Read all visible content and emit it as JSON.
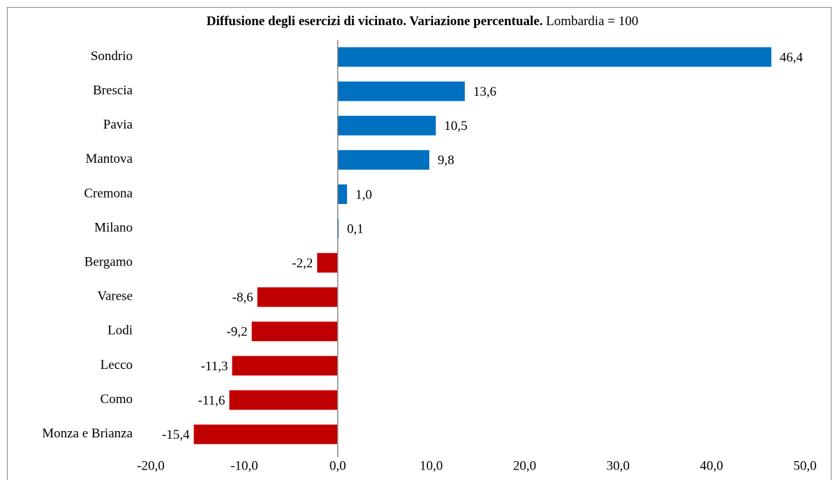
{
  "chart_data": {
    "type": "barh",
    "title": "Diffusione degli esercizi di vicinato. Variazione percentuale.",
    "subtitle": "Lombardia = 100",
    "categories": [
      "Sondrio",
      "Brescia",
      "Pavia",
      "Mantova",
      "Cremona",
      "Milano",
      "Bergamo",
      "Varese",
      "Lodi",
      "Lecco",
      "Como",
      "Monza e Brianza"
    ],
    "values": [
      46.4,
      13.6,
      10.5,
      9.8,
      1.0,
      0.1,
      -2.2,
      -8.6,
      -9.2,
      -11.3,
      -11.6,
      -15.4
    ],
    "value_labels": [
      "46,4",
      "13,6",
      "10,5",
      "9,8",
      "1,0",
      "0,1",
      "-2,2",
      "-8,6",
      "-9,2",
      "-11,3",
      "-11,6",
      "-15,4"
    ],
    "positive_color": "#0070c0",
    "negative_color": "#c00000",
    "xlim": [
      -20,
      50
    ],
    "xticks": [
      {
        "value": -20,
        "label": "-20,0"
      },
      {
        "value": -10,
        "label": "-10,0"
      },
      {
        "value": 0,
        "label": "0,0"
      },
      {
        "value": 10,
        "label": "10,0"
      },
      {
        "value": 20,
        "label": "20,0"
      },
      {
        "value": 30,
        "label": "30,0"
      },
      {
        "value": 40,
        "label": "40,0"
      },
      {
        "value": 50,
        "label": "50,0"
      }
    ],
    "grid": false
  }
}
